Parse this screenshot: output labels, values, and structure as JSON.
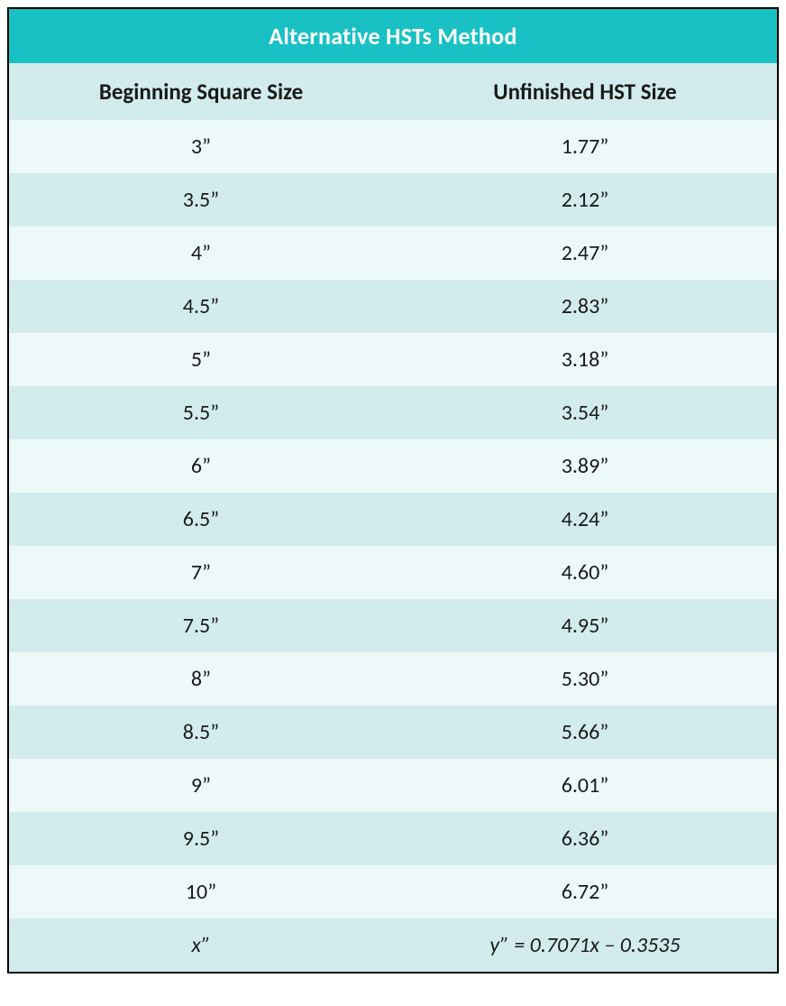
{
  "table": {
    "title": "Alternative HSTs Method",
    "title_bg_color": "#1ac1c4",
    "title_text_color": "#ffffff",
    "title_fontsize": 26,
    "header_bg_color": "#d2eced",
    "header_fontsize": 25,
    "row_light_bg": "#edf8f8",
    "row_dark_bg": "#d2eced",
    "cell_fontsize": 24,
    "border_color": "#000000",
    "columns": [
      "Beginning Square Size",
      "Unfinished HST Size"
    ],
    "rows": [
      [
        "3”",
        "1.77”"
      ],
      [
        "3.5”",
        "2.12”"
      ],
      [
        "4”",
        "2.47”"
      ],
      [
        "4.5”",
        "2.83”"
      ],
      [
        "5”",
        "3.18”"
      ],
      [
        "5.5”",
        "3.54”"
      ],
      [
        "6”",
        "3.89”"
      ],
      [
        "6.5”",
        "4.24”"
      ],
      [
        "7”",
        "4.60”"
      ],
      [
        "7.5”",
        "4.95”"
      ],
      [
        "8”",
        "5.30”"
      ],
      [
        "8.5”",
        "5.66”"
      ],
      [
        "9”",
        "6.01”"
      ],
      [
        "9.5”",
        "6.36”"
      ],
      [
        "10”",
        "6.72”"
      ]
    ],
    "formula_row": [
      "x”",
      "y” = 0.7071x – 0.3535"
    ]
  }
}
